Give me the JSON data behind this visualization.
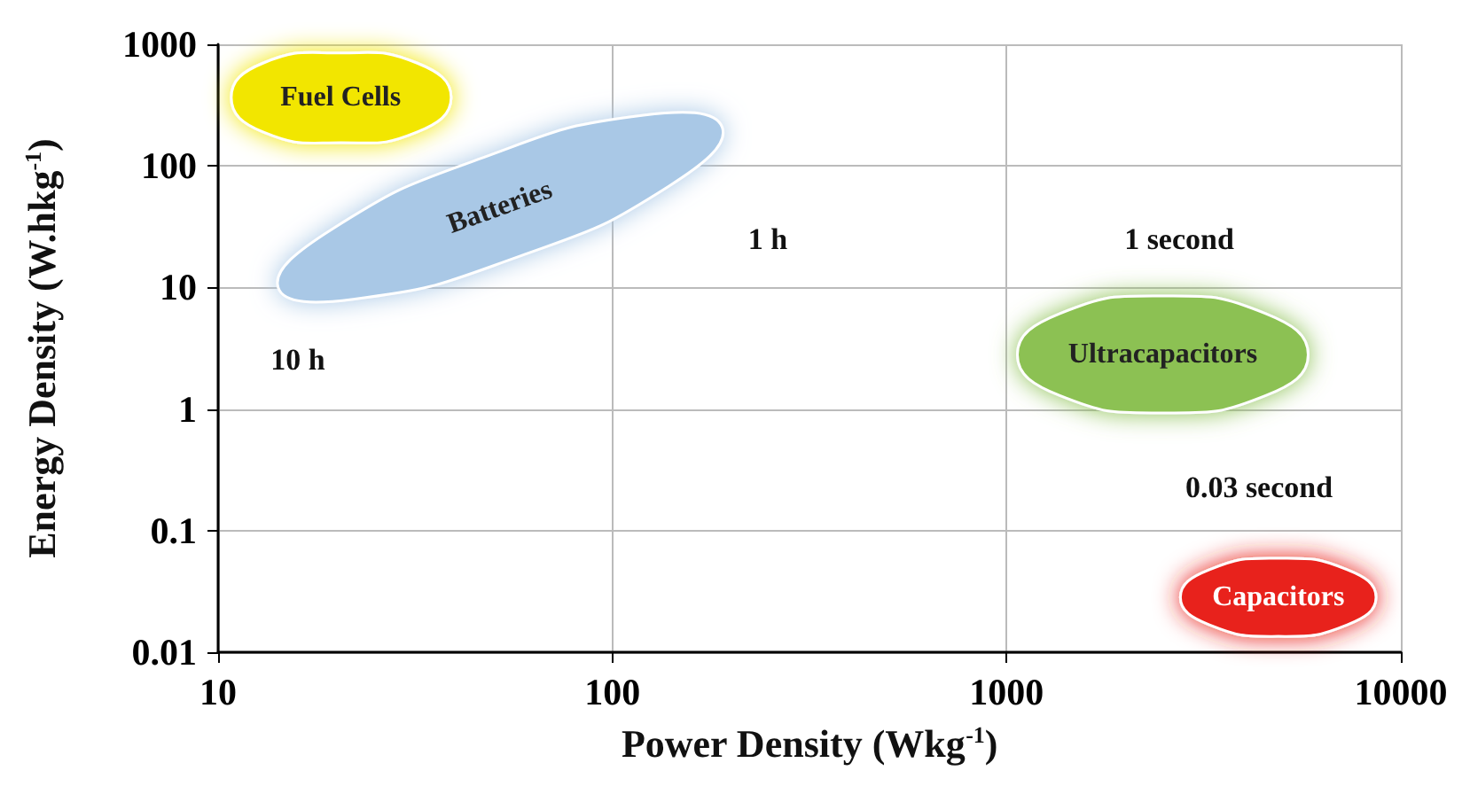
{
  "chart_data": {
    "type": "area",
    "xlabel": "Power Density (Wkg$^{-1}$)",
    "ylabel": "Energy Density (W.hkg$^{-1}$)",
    "log": "xy",
    "grid": true,
    "legend": false,
    "xlim": [
      10,
      10000
    ],
    "xticks": [
      10,
      100,
      1000,
      10000
    ],
    "ylim": [
      0.01,
      1000
    ],
    "yticks": [
      0.01,
      0.1,
      1,
      10,
      100,
      1000
    ],
    "series": [
      {
        "name": "Fuel Cells",
        "color": "#f2e600",
        "x": [
          39,
          32,
          20.5,
          13,
          10.8,
          13,
          20.5,
          32
        ],
        "values": [
          365,
          700,
          850,
          700,
          365,
          190,
          155,
          190
        ]
      },
      {
        "name": "Batteries",
        "color": "#a9c8e6",
        "x": [
          190,
          139,
          58,
          22,
          14.2,
          19.4,
          47,
          120
        ],
        "values": [
          207,
          68,
          18,
          8,
          10,
          30,
          117,
          261
        ]
      },
      {
        "name": "Ultracapacitors",
        "color": "#8cc152",
        "x": [
          5820,
          4540,
          2490,
          1365,
          1065,
          1365,
          2490,
          4540
        ],
        "values": [
          2.8,
          6.1,
          8.5,
          6.1,
          2.8,
          1.29,
          0.93,
          1.29
        ]
      },
      {
        "name": "Capacitors",
        "color": "#e8201a",
        "x": [
          8650,
          7310,
          4890,
          3270,
          2760,
          3270,
          4890,
          7310
        ],
        "values": [
          0.0283,
          0.0478,
          0.0593,
          0.0478,
          0.0283,
          0.0168,
          0.0135,
          0.0168
        ]
      }
    ],
    "annotations": [
      "10 h",
      "1 h",
      "1 second",
      "0.03 second"
    ]
  }
}
